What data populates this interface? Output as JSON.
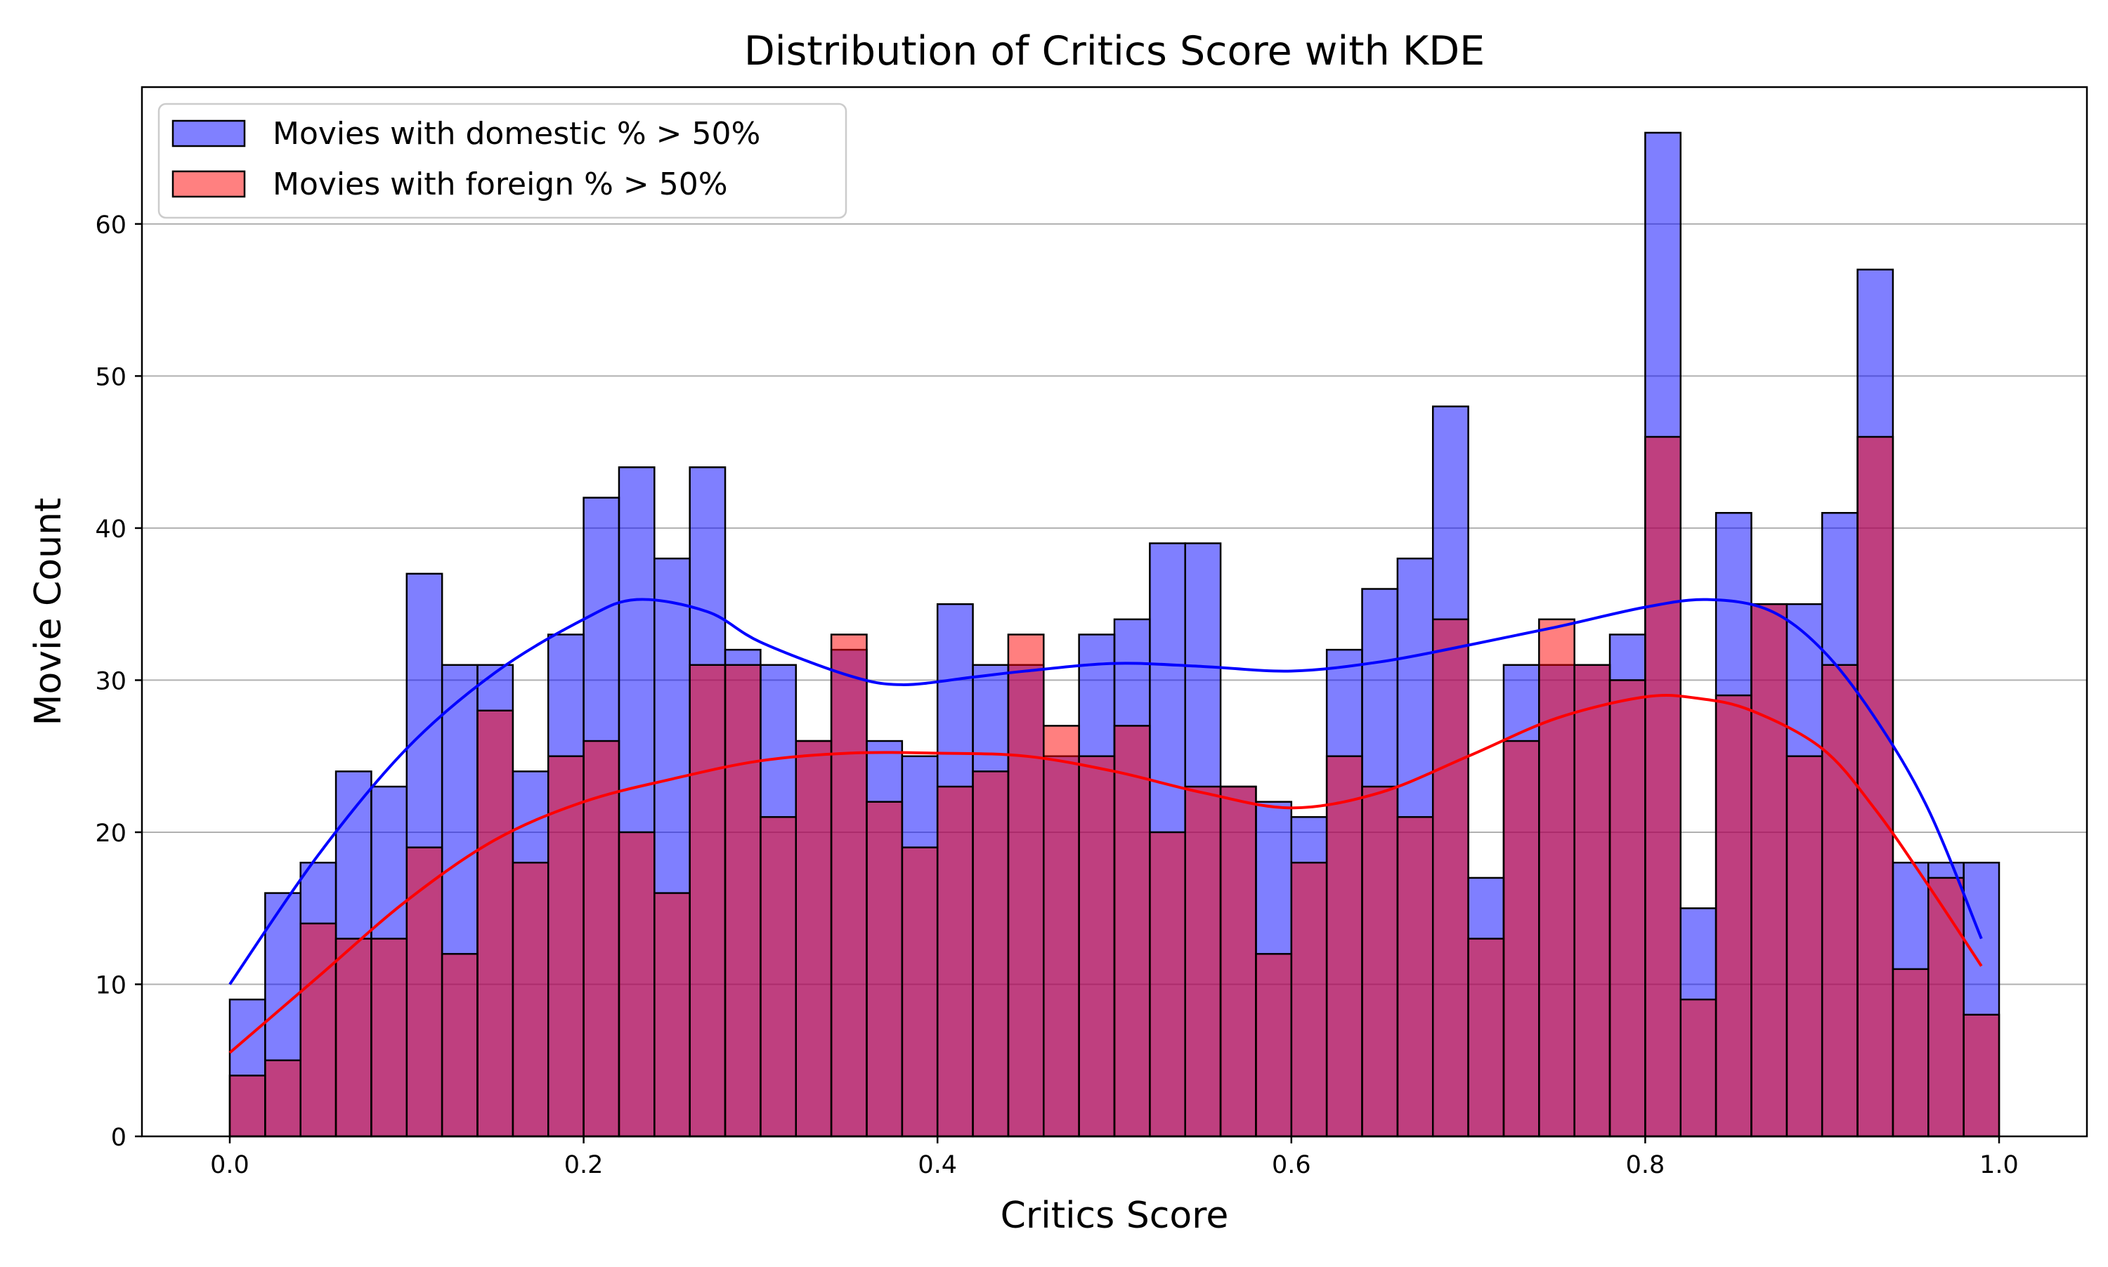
{
  "chart_data": {
    "type": "histogram",
    "title": "Distribution of Critics Score with KDE",
    "xlabel": "Critics Score",
    "ylabel": "Movie Count",
    "xlim": [
      -0.05,
      1.05
    ],
    "ylim": [
      0,
      69
    ],
    "x_ticks": [
      0.0,
      0.2,
      0.4,
      0.6,
      0.8,
      1.0
    ],
    "x_tick_labels": [
      "0.0",
      "0.2",
      "0.4",
      "0.6",
      "0.8",
      "1.0"
    ],
    "y_ticks": [
      0,
      10,
      20,
      30,
      40,
      50,
      60
    ],
    "y_tick_labels": [
      "0",
      "10",
      "20",
      "30",
      "40",
      "50",
      "60"
    ],
    "grid": "horizontal",
    "legend_position": "top-left",
    "bin_start": 0.0,
    "bin_width": 0.02,
    "series": [
      {
        "name": "Movies with domestic % > 50%",
        "color": "#0000ff",
        "fill": "#8080ff",
        "counts": [
          9,
          16,
          18,
          24,
          23,
          37,
          31,
          31,
          24,
          33,
          42,
          44,
          38,
          44,
          32,
          31,
          26,
          32,
          26,
          25,
          35,
          31,
          31,
          25,
          33,
          34,
          39,
          39,
          23,
          22,
          21,
          32,
          36,
          38,
          48,
          17,
          31,
          31,
          31,
          33,
          66,
          15,
          41,
          35,
          35,
          41,
          57,
          18,
          18,
          18
        ],
        "kde_x": [
          0.0,
          0.05,
          0.1,
          0.15,
          0.2,
          0.23,
          0.27,
          0.3,
          0.35,
          0.38,
          0.42,
          0.45,
          0.5,
          0.55,
          0.6,
          0.65,
          0.7,
          0.75,
          0.8,
          0.835,
          0.87,
          0.9,
          0.93,
          0.96,
          0.99
        ],
        "kde_y": [
          10,
          18.5,
          25.5,
          30.5,
          34,
          35.3,
          34.5,
          32.5,
          30.3,
          29.7,
          30.2,
          30.6,
          31.1,
          30.9,
          30.6,
          31.2,
          32.3,
          33.5,
          34.8,
          35.3,
          34.6,
          32,
          27.5,
          21.5,
          13
        ]
      },
      {
        "name": "Movies with foreign % > 50%",
        "color": "#ff0000",
        "fill": "#ff8080",
        "counts": [
          4,
          5,
          14,
          13,
          13,
          19,
          12,
          28,
          18,
          25,
          26,
          20,
          16,
          31,
          31,
          21,
          26,
          33,
          22,
          19,
          23,
          24,
          33,
          27,
          25,
          27,
          20,
          23,
          23,
          12,
          18,
          25,
          23,
          21,
          34,
          13,
          26,
          34,
          31,
          30,
          46,
          9,
          29,
          35,
          25,
          31,
          46,
          11,
          17,
          8
        ],
        "kde_x": [
          0.0,
          0.05,
          0.1,
          0.15,
          0.2,
          0.25,
          0.3,
          0.35,
          0.4,
          0.45,
          0.5,
          0.55,
          0.6,
          0.65,
          0.7,
          0.75,
          0.8,
          0.83,
          0.86,
          0.9,
          0.93,
          0.96,
          0.99
        ],
        "kde_y": [
          5.5,
          10.5,
          15.5,
          19.5,
          22,
          23.5,
          24.7,
          25.2,
          25.2,
          25,
          24,
          22.6,
          21.6,
          22.6,
          25,
          27.5,
          28.9,
          28.8,
          28,
          25.5,
          21.5,
          16.5,
          11.2
        ]
      }
    ]
  }
}
